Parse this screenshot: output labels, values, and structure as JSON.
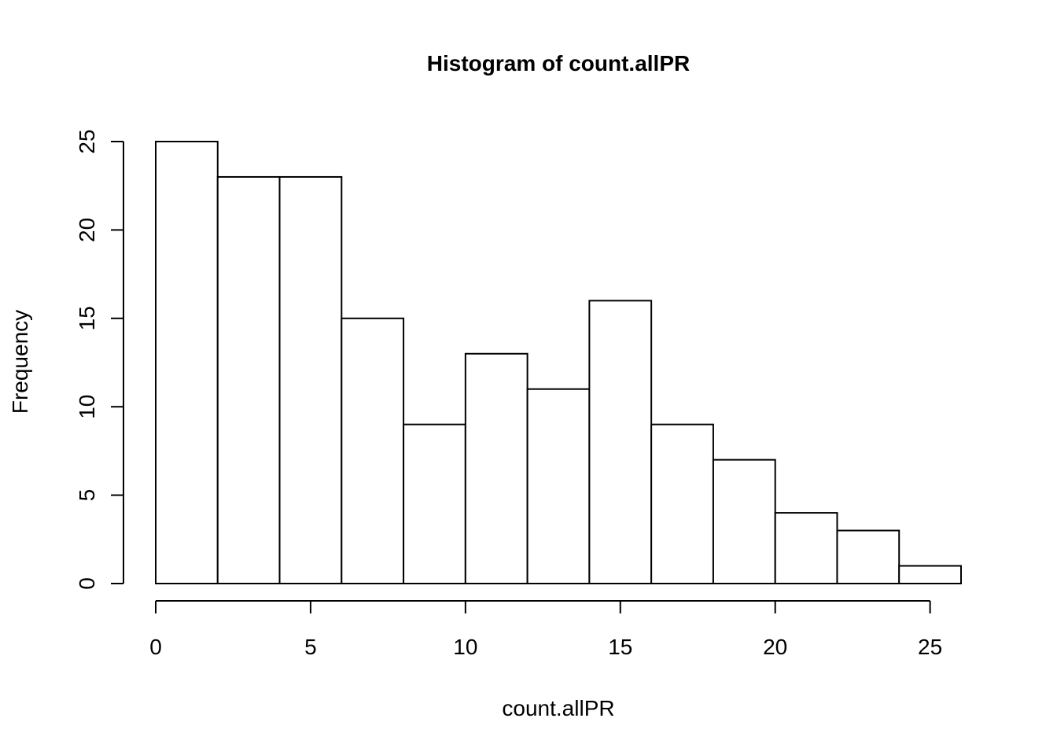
{
  "chart_data": {
    "type": "bar",
    "title": "Histogram of count.allPR",
    "xlabel": "count.allPR",
    "ylabel": "Frequency",
    "bin_edges": [
      0,
      2,
      4,
      6,
      8,
      10,
      12,
      14,
      16,
      18,
      20,
      22,
      24,
      26
    ],
    "values": [
      25,
      23,
      23,
      15,
      9,
      13,
      11,
      16,
      9,
      7,
      4,
      3,
      1
    ],
    "xlim": [
      0,
      26
    ],
    "ylim": [
      0,
      25
    ],
    "x_ticks": [
      0,
      5,
      10,
      15,
      20,
      25
    ],
    "y_ticks": [
      0,
      5,
      10,
      15,
      20,
      25
    ],
    "grid": false,
    "colors": {
      "bar_fill": "#ffffff",
      "bar_stroke": "#000000"
    }
  }
}
